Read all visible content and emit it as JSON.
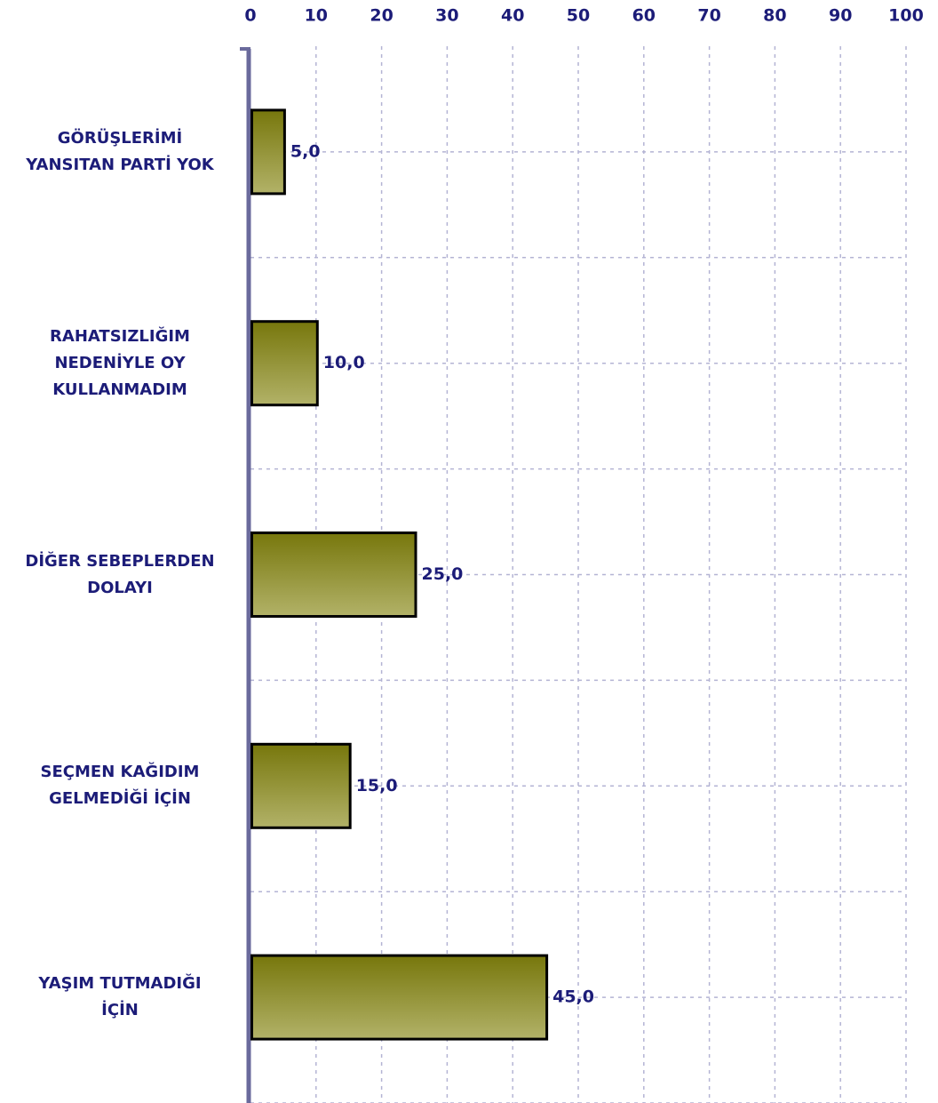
{
  "chart_data": {
    "type": "bar",
    "orientation": "horizontal",
    "categories": [
      "GÖRÜŞLERİMİ\nYANSITAN PARTİ YOK",
      "RAHATSIZLIĞIM\nNEDENİYLE OY\nKULLANMADIM",
      "DİĞER SEBEPLERDEN\nDOLAYI",
      "SEÇMEN KAĞIDIM\nGELMEDİĞİ İÇİN",
      "YAŞIM TUTMADIĞI\nİÇİN"
    ],
    "values": [
      5,
      10,
      25,
      15,
      45
    ],
    "value_labels": [
      "5,0",
      "10,0",
      "25,0",
      "15,0",
      "45,0"
    ],
    "color": "#8a8a20",
    "xlim": [
      0,
      100
    ],
    "xticks": [
      0,
      10,
      20,
      30,
      40,
      50,
      60,
      70,
      80,
      90,
      100
    ],
    "grid": true
  }
}
